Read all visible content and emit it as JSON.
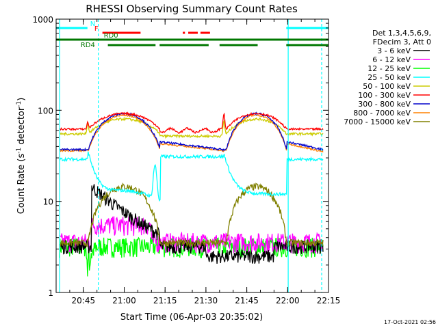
{
  "chart_data": {
    "type": "line",
    "title": "RHESSI Observing Summary Count Rates",
    "xlabel": "Start Time (06-Apr-03 20:35:02)",
    "ylabel": "Count Rate (s",
    "ylabel_sup1": "-1",
    "ylabel_mid": " detector",
    "ylabel_sup2": "-1",
    "ylabel_end": ")",
    "y_scale": "log",
    "ylim": [
      1,
      1000
    ],
    "xlim_min": [
      35,
      135
    ],
    "x_ticks": [
      {
        "min": 45,
        "label": "20:45"
      },
      {
        "min": 60,
        "label": "21:00"
      },
      {
        "min": 75,
        "label": "21:15"
      },
      {
        "min": 90,
        "label": "21:30"
      },
      {
        "min": 105,
        "label": "21:45"
      },
      {
        "min": 120,
        "label": "22:00"
      },
      {
        "min": 135,
        "label": "22:15"
      }
    ],
    "y_ticks": [
      {
        "v": 1,
        "label": "1"
      },
      {
        "v": 10,
        "label": "10"
      },
      {
        "v": 100,
        "label": "100"
      },
      {
        "v": 1000,
        "label": "1000"
      }
    ],
    "grid": false,
    "legend_header": [
      "Det 1,3,4,5,6,9,",
      "FDecim 3, Att 0"
    ],
    "legend_position": "right",
    "series": [
      {
        "name": "3 - 6 keV",
        "color": "#000000"
      },
      {
        "name": "6 - 12 keV",
        "color": "#ff00ff"
      },
      {
        "name": "12 - 25 keV",
        "color": "#00ff00"
      },
      {
        "name": "25 - 50 keV",
        "color": "#00ffff"
      },
      {
        "name": "50 - 100 keV",
        "color": "#cccc00"
      },
      {
        "name": "100 - 300 keV",
        "color": "#ff0000"
      },
      {
        "name": "300 - 800 keV",
        "color": "#0000cc"
      },
      {
        "name": "800 - 7000 keV",
        "color": "#ff8000"
      },
      {
        "name": "7000 - 15000 keV",
        "color": "#808000"
      }
    ],
    "background_levels": {
      "100 - 300 keV": {
        "night": 62,
        "peak": 95
      },
      "50 - 100 keV": {
        "night": 55,
        "peak": 80
      },
      "300 - 800 keV": {
        "night": 37,
        "peak": 92
      },
      "800 - 7000 keV": {
        "night": 36,
        "peak": 90
      },
      "25 - 50 keV": {
        "night": 29,
        "peak": 35
      },
      "7000 - 15000 keV": {
        "night": 3.5,
        "peak": 15
      },
      "3 - 6 keV": {
        "night": 3,
        "peak": 11
      },
      "6 - 12 keV": {
        "night": 3.5,
        "peak": 7
      },
      "12 - 25 keV": {
        "night": 3,
        "peak": 4
      }
    },
    "flags": [
      {
        "label": "N",
        "color": "#00ffff",
        "segments": [
          [
            35,
            46.5
          ],
          [
            119.5,
            135
          ]
        ]
      },
      {
        "label": "F",
        "color": "#ff0000",
        "segments": [
          [
            52,
            66
          ],
          [
            81.5,
            82.3
          ],
          [
            83.5,
            87
          ],
          [
            88,
            91.5
          ]
        ]
      },
      {
        "label": "RD0",
        "color": "#007700",
        "segments": [
          [
            35,
            135
          ]
        ]
      },
      {
        "label": "RD4",
        "color": "#007700",
        "segments": [
          [
            54,
            71.5
          ],
          [
            73,
            91
          ],
          [
            95,
            109
          ],
          [
            119.5,
            135
          ]
        ]
      }
    ],
    "saa_lines_min": [
      36.3,
      50.5,
      120.2,
      132.5
    ]
  },
  "footer_timestamp": "17-Oct-2021 02:56"
}
